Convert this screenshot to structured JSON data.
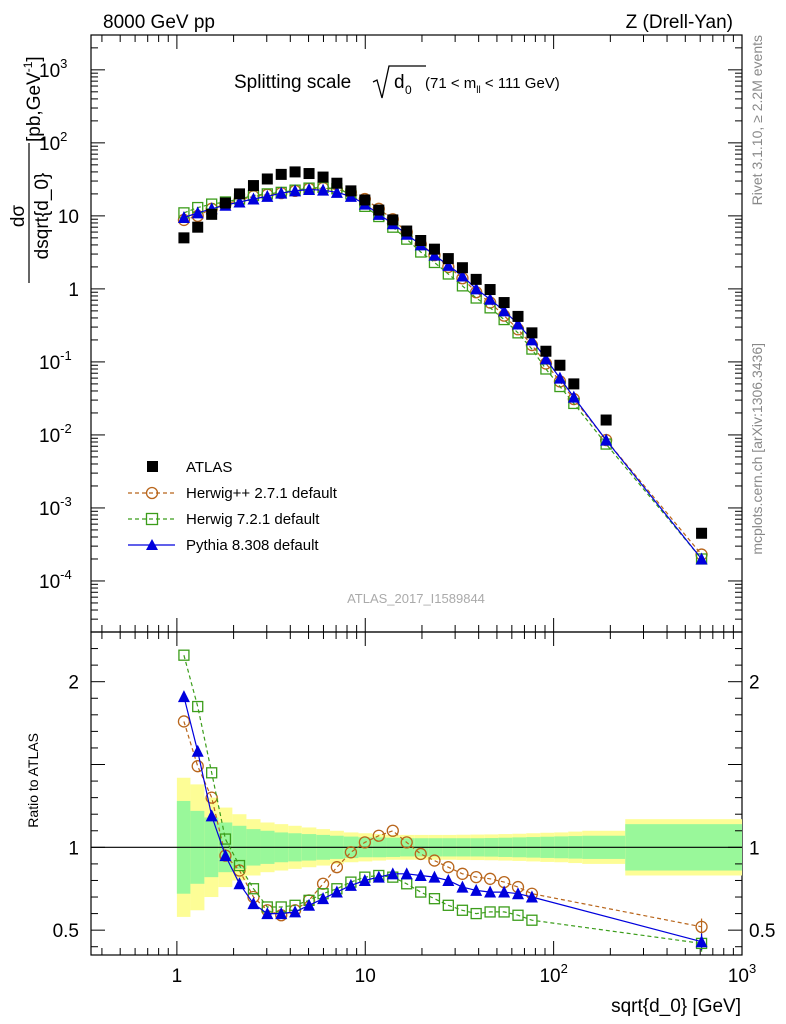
{
  "header": {
    "left": "8000 GeV pp",
    "right": "Z (Drell-Yan)"
  },
  "main_title": {
    "prefix": "Splitting scale",
    "symbol": "d",
    "symbol_sub": "0",
    "range_pre": "(71 < m",
    "range_sub": "ll",
    "range_post": " < 111 GeV)"
  },
  "side_labels": {
    "rivet": "Rivet 3.1.10,  ≥ 2.2M events",
    "mcplots": "mcplots.cern.ch [arXiv:1306.3436]"
  },
  "watermark": "ATLAS_2017_I1589844",
  "colors": {
    "atlas": "#000000",
    "herwigpp": "#b8651b",
    "herwig7": "#3b9d1a",
    "pythia": "#0000dd",
    "band_inner": "#99f89a",
    "band_outer": "#fdfd96"
  },
  "chart_data": [
    {
      "type": "scatter",
      "panel": "main",
      "xlabel": "sqrt{d_0} [GeV]",
      "ylabel": {
        "numerator": "dσ",
        "denominator": "dsqrt{d_0}",
        "units": "[pb,GeV",
        "units_exp": "-1",
        "units_close": "]"
      },
      "xscale": "log",
      "yscale": "log",
      "xlim": [
        0.35,
        1000
      ],
      "ylim": [
        2e-05,
        3000
      ],
      "y_ticks": [
        {
          "v": 0.0001,
          "base": "10",
          "exp": "-4"
        },
        {
          "v": 0.001,
          "base": "10",
          "exp": "-3"
        },
        {
          "v": 0.01,
          "base": "10",
          "exp": "-2"
        },
        {
          "v": 0.1,
          "base": "10",
          "exp": "-1"
        },
        {
          "v": 1,
          "base": "1",
          "exp": ""
        },
        {
          "v": 10,
          "base": "10",
          "exp": ""
        },
        {
          "v": 100,
          "base": "10",
          "exp": "2"
        },
        {
          "v": 1000,
          "base": "10",
          "exp": "3"
        }
      ],
      "legend_position": "bottom-left",
      "series": [
        {
          "name": "ATLAS",
          "marker": "filled-square",
          "x": [
            1.09,
            1.29,
            1.53,
            1.81,
            2.15,
            2.55,
            3.02,
            3.58,
            4.24,
            5.03,
            5.97,
            7.07,
            8.39,
            9.95,
            11.8,
            14.0,
            16.6,
            19.7,
            23.3,
            27.6,
            32.8,
            38.8,
            46.0,
            54.6,
            64.7,
            76.7,
            91.0,
            108,
            128,
            190,
            610
          ],
          "y": [
            5.0,
            7.0,
            10.5,
            15.0,
            20.0,
            26.0,
            32.0,
            37.0,
            40.0,
            38.0,
            34.0,
            28.0,
            22.0,
            16.5,
            12.0,
            8.8,
            6.2,
            4.6,
            3.5,
            2.6,
            1.95,
            1.35,
            0.98,
            0.65,
            0.42,
            0.25,
            0.14,
            0.09,
            0.05,
            0.016,
            0.00045
          ]
        },
        {
          "name": "Herwig++ 2.7.1 default",
          "marker": "open-circle",
          "line": "dashed",
          "x": [
            1.09,
            1.29,
            1.53,
            1.81,
            2.15,
            2.55,
            3.02,
            3.58,
            4.24,
            5.03,
            5.97,
            7.07,
            8.39,
            9.95,
            11.8,
            14.0,
            16.6,
            19.7,
            23.3,
            27.6,
            32.8,
            38.8,
            46.0,
            54.6,
            64.7,
            76.7,
            91.0,
            108,
            128,
            190,
            610
          ],
          "y": [
            8.8,
            10.0,
            12.5,
            14.5,
            16.5,
            18.5,
            19.5,
            20.5,
            22.0,
            23.5,
            24.0,
            23.0,
            21.0,
            17.0,
            12.5,
            9.0,
            6.0,
            4.1,
            2.9,
            2.0,
            1.4,
            0.9,
            0.65,
            0.43,
            0.28,
            0.17,
            0.095,
            0.054,
            0.031,
            0.0085,
            0.00023
          ]
        },
        {
          "name": "Herwig 7.2.1 default",
          "marker": "open-square",
          "line": "dashed",
          "x": [
            1.09,
            1.29,
            1.53,
            1.81,
            2.15,
            2.55,
            3.02,
            3.58,
            4.24,
            5.03,
            5.97,
            7.07,
            8.39,
            9.95,
            11.8,
            14.0,
            16.6,
            19.7,
            23.3,
            27.6,
            32.8,
            38.8,
            46.0,
            54.6,
            64.7,
            76.7,
            91.0,
            108,
            128,
            190,
            610
          ],
          "y": [
            11.0,
            13.0,
            14.5,
            15.5,
            17.0,
            19.0,
            20.0,
            21.0,
            22.5,
            24.0,
            24.5,
            23.5,
            20.0,
            13.5,
            9.8,
            7.0,
            4.8,
            3.2,
            2.3,
            1.6,
            1.1,
            0.75,
            0.55,
            0.38,
            0.25,
            0.15,
            0.08,
            0.046,
            0.027,
            0.0075,
            0.0002
          ]
        },
        {
          "name": "Pythia 8.308 default",
          "marker": "filled-triangle",
          "line": "solid",
          "x": [
            1.09,
            1.29,
            1.53,
            1.81,
            2.15,
            2.55,
            3.02,
            3.58,
            4.24,
            5.03,
            5.97,
            7.07,
            8.39,
            9.95,
            11.8,
            14.0,
            16.6,
            19.7,
            23.3,
            27.6,
            32.8,
            38.8,
            46.0,
            54.6,
            64.7,
            76.7,
            91.0,
            108,
            128,
            190,
            610
          ],
          "y": [
            9.5,
            11.0,
            12.5,
            14.0,
            15.5,
            17.0,
            18.5,
            20.5,
            22.0,
            23.0,
            22.5,
            21.0,
            18.5,
            14.5,
            10.5,
            7.8,
            5.6,
            4.0,
            2.9,
            2.1,
            1.5,
            1.0,
            0.72,
            0.5,
            0.33,
            0.2,
            0.11,
            0.06,
            0.033,
            0.0085,
            0.0002
          ]
        }
      ]
    },
    {
      "type": "scatter",
      "panel": "ratio",
      "xlabel": "sqrt{d_0} [GeV]",
      "ylabel": "Ratio to ATLAS",
      "xscale": "log",
      "xlim": [
        0.35,
        1000
      ],
      "ylim": [
        0.35,
        2.3
      ],
      "x_ticks": [
        {
          "v": 1,
          "base": "1",
          "exp": ""
        },
        {
          "v": 10,
          "base": "10",
          "exp": ""
        },
        {
          "v": 100,
          "base": "10",
          "exp": "2"
        },
        {
          "v": 1000,
          "base": "10",
          "exp": "3"
        }
      ],
      "y_ticks": [
        {
          "v": 0.5,
          "label": "0.5"
        },
        {
          "v": 1,
          "label": "1"
        },
        {
          "v": 2,
          "label": "2"
        }
      ],
      "reference_line": 1,
      "uncertainty_bands": {
        "edges": [
          1.0,
          1.18,
          1.4,
          1.66,
          1.97,
          2.34,
          2.78,
          3.3,
          3.9,
          4.6,
          5.5,
          6.5,
          7.7,
          9.2,
          10.9,
          12.9,
          15.3,
          18.2,
          21.6,
          25.6,
          30.4,
          36.1,
          42.8,
          50.8,
          60.3,
          71.5,
          84.9,
          100.7,
          119.5,
          141.8,
          240,
          1000
        ],
        "inner": [
          0.28,
          0.22,
          0.18,
          0.15,
          0.13,
          0.11,
          0.1,
          0.09,
          0.085,
          0.08,
          0.075,
          0.07,
          0.065,
          0.06,
          0.06,
          0.058,
          0.055,
          0.055,
          0.055,
          0.055,
          0.055,
          0.055,
          0.056,
          0.058,
          0.06,
          0.062,
          0.064,
          0.066,
          0.068,
          0.07,
          0.14
        ],
        "outer": [
          0.42,
          0.38,
          0.3,
          0.24,
          0.2,
          0.17,
          0.15,
          0.14,
          0.13,
          0.12,
          0.11,
          0.1,
          0.09,
          0.085,
          0.08,
          0.075,
          0.075,
          0.075,
          0.075,
          0.075,
          0.076,
          0.077,
          0.078,
          0.08,
          0.082,
          0.085,
          0.088,
          0.09,
          0.095,
          0.1,
          0.17
        ]
      },
      "series": [
        {
          "name": "Herwig++ 2.7.1 default",
          "marker": "open-circle",
          "line": "dashed",
          "x": [
            1.09,
            1.29,
            1.53,
            1.81,
            2.15,
            2.55,
            3.02,
            3.58,
            4.24,
            5.03,
            5.97,
            7.07,
            8.39,
            9.95,
            11.8,
            14.0,
            16.6,
            19.7,
            23.3,
            27.6,
            32.8,
            38.8,
            46.0,
            54.6,
            64.7,
            76.7,
            610
          ],
          "y": [
            1.76,
            1.49,
            1.3,
            0.95,
            0.86,
            0.7,
            0.62,
            0.59,
            0.62,
            0.68,
            0.78,
            0.88,
            0.97,
            1.03,
            1.07,
            1.1,
            1.03,
            0.96,
            0.92,
            0.88,
            0.84,
            0.82,
            0.81,
            0.79,
            0.76,
            0.72,
            0.52
          ]
        },
        {
          "name": "Herwig 7.2.1 default",
          "marker": "open-square",
          "line": "dashed",
          "x": [
            1.09,
            1.29,
            1.53,
            1.81,
            2.15,
            2.55,
            3.02,
            3.58,
            4.24,
            5.03,
            5.97,
            7.07,
            8.39,
            9.95,
            11.8,
            14.0,
            16.6,
            19.7,
            23.3,
            27.6,
            32.8,
            38.8,
            46.0,
            54.6,
            64.7,
            76.7,
            610
          ],
          "y": [
            2.16,
            1.85,
            1.45,
            1.05,
            0.89,
            0.75,
            0.64,
            0.64,
            0.65,
            0.68,
            0.72,
            0.75,
            0.79,
            0.82,
            0.83,
            0.82,
            0.78,
            0.73,
            0.69,
            0.65,
            0.62,
            0.6,
            0.61,
            0.61,
            0.59,
            0.56,
            0.42
          ]
        },
        {
          "name": "Pythia 8.308 default",
          "marker": "filled-triangle",
          "line": "solid",
          "x": [
            1.09,
            1.29,
            1.53,
            1.81,
            2.15,
            2.55,
            3.02,
            3.58,
            4.24,
            5.03,
            5.97,
            7.07,
            8.39,
            9.95,
            11.8,
            14.0,
            16.6,
            19.7,
            23.3,
            27.6,
            32.8,
            38.8,
            46.0,
            54.6,
            64.7,
            76.7,
            610
          ],
          "y": [
            1.91,
            1.58,
            1.19,
            0.95,
            0.78,
            0.66,
            0.6,
            0.6,
            0.61,
            0.65,
            0.69,
            0.73,
            0.77,
            0.8,
            0.82,
            0.84,
            0.84,
            0.83,
            0.82,
            0.8,
            0.76,
            0.74,
            0.73,
            0.73,
            0.72,
            0.7,
            0.43
          ]
        }
      ]
    }
  ]
}
